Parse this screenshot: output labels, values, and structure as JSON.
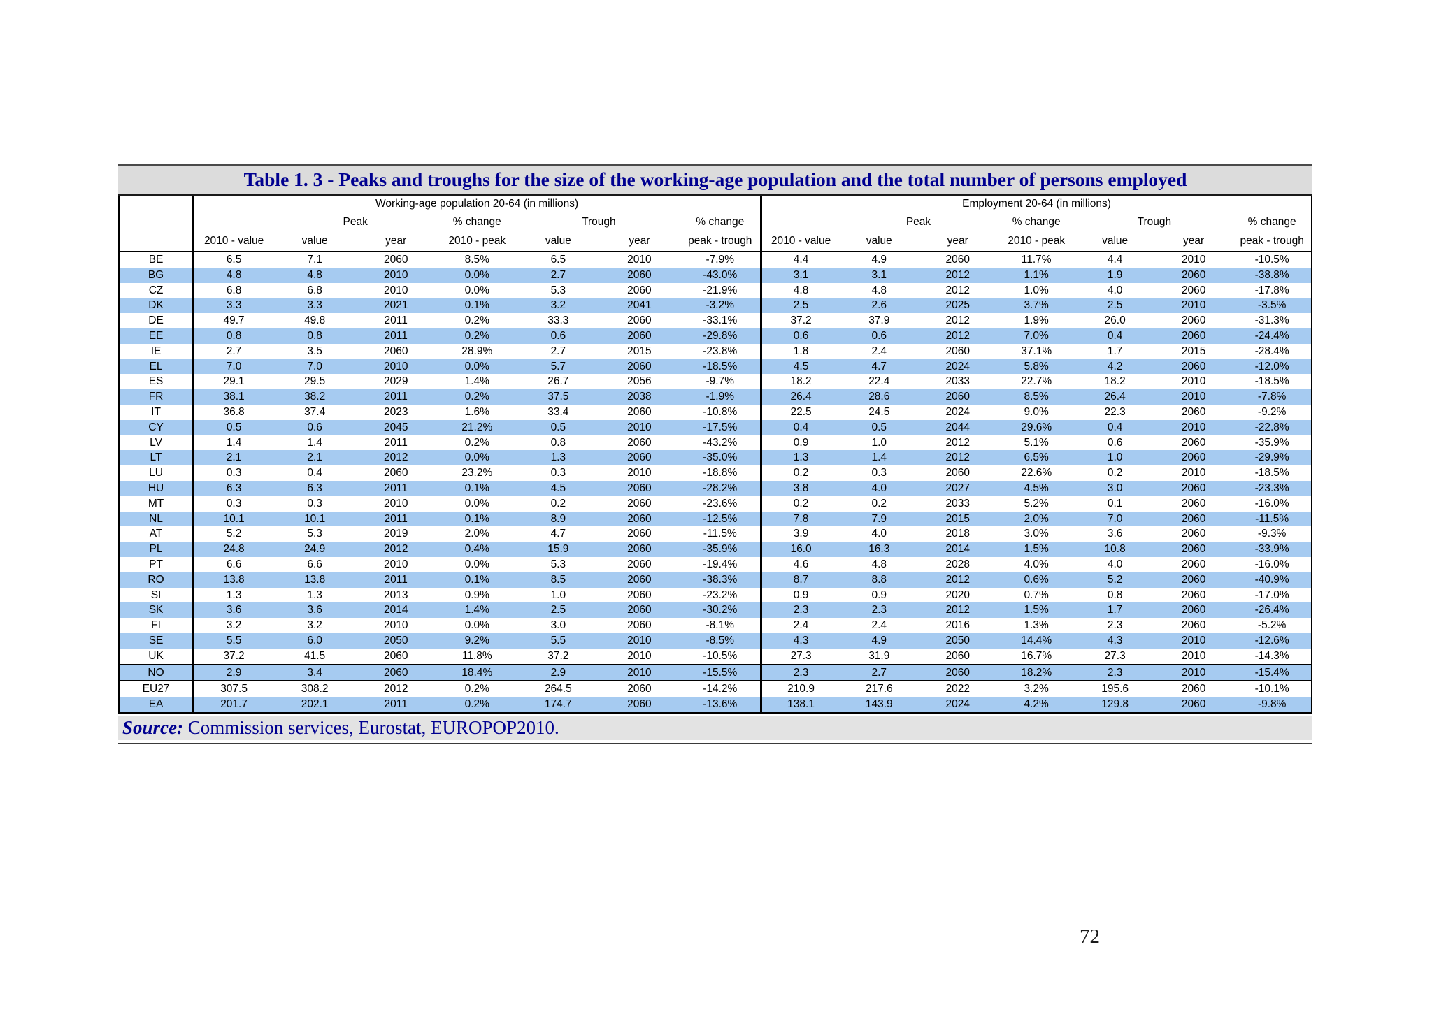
{
  "page": {
    "number": "72"
  },
  "table": {
    "title": "Table 1. 3 - Peaks and troughs for the size of the working-age population and the total number of persons employed",
    "sections": [
      "Working-age population 20-64 (in millions)",
      "Employment 20-64 (in millions)"
    ],
    "group_labels": [
      "Peak",
      "% change",
      "Trough",
      "% change"
    ],
    "sub_headers": [
      "2010 - value",
      "value",
      "year",
      "2010 - peak",
      "value",
      "year",
      "peak - trough"
    ],
    "rows": [
      {
        "code": "BE",
        "wap": [
          "6.5",
          "7.1",
          "2060",
          "8.5%",
          "6.5",
          "2010",
          "-7.9%"
        ],
        "emp": [
          "4.4",
          "4.9",
          "2060",
          "11.7%",
          "4.4",
          "2010",
          "-10.5%"
        ]
      },
      {
        "code": "BG",
        "wap": [
          "4.8",
          "4.8",
          "2010",
          "0.0%",
          "2.7",
          "2060",
          "-43.0%"
        ],
        "emp": [
          "3.1",
          "3.1",
          "2012",
          "1.1%",
          "1.9",
          "2060",
          "-38.8%"
        ]
      },
      {
        "code": "CZ",
        "wap": [
          "6.8",
          "6.8",
          "2010",
          "0.0%",
          "5.3",
          "2060",
          "-21.9%"
        ],
        "emp": [
          "4.8",
          "4.8",
          "2012",
          "1.0%",
          "4.0",
          "2060",
          "-17.8%"
        ]
      },
      {
        "code": "DK",
        "wap": [
          "3.3",
          "3.3",
          "2021",
          "0.1%",
          "3.2",
          "2041",
          "-3.2%"
        ],
        "emp": [
          "2.5",
          "2.6",
          "2025",
          "3.7%",
          "2.5",
          "2010",
          "-3.5%"
        ]
      },
      {
        "code": "DE",
        "wap": [
          "49.7",
          "49.8",
          "2011",
          "0.2%",
          "33.3",
          "2060",
          "-33.1%"
        ],
        "emp": [
          "37.2",
          "37.9",
          "2012",
          "1.9%",
          "26.0",
          "2060",
          "-31.3%"
        ]
      },
      {
        "code": "EE",
        "wap": [
          "0.8",
          "0.8",
          "2011",
          "0.2%",
          "0.6",
          "2060",
          "-29.8%"
        ],
        "emp": [
          "0.6",
          "0.6",
          "2012",
          "7.0%",
          "0.4",
          "2060",
          "-24.4%"
        ]
      },
      {
        "code": "IE",
        "wap": [
          "2.7",
          "3.5",
          "2060",
          "28.9%",
          "2.7",
          "2015",
          "-23.8%"
        ],
        "emp": [
          "1.8",
          "2.4",
          "2060",
          "37.1%",
          "1.7",
          "2015",
          "-28.4%"
        ]
      },
      {
        "code": "EL",
        "wap": [
          "7.0",
          "7.0",
          "2010",
          "0.0%",
          "5.7",
          "2060",
          "-18.5%"
        ],
        "emp": [
          "4.5",
          "4.7",
          "2024",
          "5.8%",
          "4.2",
          "2060",
          "-12.0%"
        ]
      },
      {
        "code": "ES",
        "wap": [
          "29.1",
          "29.5",
          "2029",
          "1.4%",
          "26.7",
          "2056",
          "-9.7%"
        ],
        "emp": [
          "18.2",
          "22.4",
          "2033",
          "22.7%",
          "18.2",
          "2010",
          "-18.5%"
        ]
      },
      {
        "code": "FR",
        "wap": [
          "38.1",
          "38.2",
          "2011",
          "0.2%",
          "37.5",
          "2038",
          "-1.9%"
        ],
        "emp": [
          "26.4",
          "28.6",
          "2060",
          "8.5%",
          "26.4",
          "2010",
          "-7.8%"
        ]
      },
      {
        "code": "IT",
        "wap": [
          "36.8",
          "37.4",
          "2023",
          "1.6%",
          "33.4",
          "2060",
          "-10.8%"
        ],
        "emp": [
          "22.5",
          "24.5",
          "2024",
          "9.0%",
          "22.3",
          "2060",
          "-9.2%"
        ]
      },
      {
        "code": "CY",
        "wap": [
          "0.5",
          "0.6",
          "2045",
          "21.2%",
          "0.5",
          "2010",
          "-17.5%"
        ],
        "emp": [
          "0.4",
          "0.5",
          "2044",
          "29.6%",
          "0.4",
          "2010",
          "-22.8%"
        ]
      },
      {
        "code": "LV",
        "wap": [
          "1.4",
          "1.4",
          "2011",
          "0.2%",
          "0.8",
          "2060",
          "-43.2%"
        ],
        "emp": [
          "0.9",
          "1.0",
          "2012",
          "5.1%",
          "0.6",
          "2060",
          "-35.9%"
        ]
      },
      {
        "code": "LT",
        "wap": [
          "2.1",
          "2.1",
          "2012",
          "0.0%",
          "1.3",
          "2060",
          "-35.0%"
        ],
        "emp": [
          "1.3",
          "1.4",
          "2012",
          "6.5%",
          "1.0",
          "2060",
          "-29.9%"
        ]
      },
      {
        "code": "LU",
        "wap": [
          "0.3",
          "0.4",
          "2060",
          "23.2%",
          "0.3",
          "2010",
          "-18.8%"
        ],
        "emp": [
          "0.2",
          "0.3",
          "2060",
          "22.6%",
          "0.2",
          "2010",
          "-18.5%"
        ]
      },
      {
        "code": "HU",
        "wap": [
          "6.3",
          "6.3",
          "2011",
          "0.1%",
          "4.5",
          "2060",
          "-28.2%"
        ],
        "emp": [
          "3.8",
          "4.0",
          "2027",
          "4.5%",
          "3.0",
          "2060",
          "-23.3%"
        ]
      },
      {
        "code": "MT",
        "wap": [
          "0.3",
          "0.3",
          "2010",
          "0.0%",
          "0.2",
          "2060",
          "-23.6%"
        ],
        "emp": [
          "0.2",
          "0.2",
          "2033",
          "5.2%",
          "0.1",
          "2060",
          "-16.0%"
        ]
      },
      {
        "code": "NL",
        "wap": [
          "10.1",
          "10.1",
          "2011",
          "0.1%",
          "8.9",
          "2060",
          "-12.5%"
        ],
        "emp": [
          "7.8",
          "7.9",
          "2015",
          "2.0%",
          "7.0",
          "2060",
          "-11.5%"
        ]
      },
      {
        "code": "AT",
        "wap": [
          "5.2",
          "5.3",
          "2019",
          "2.0%",
          "4.7",
          "2060",
          "-11.5%"
        ],
        "emp": [
          "3.9",
          "4.0",
          "2018",
          "3.0%",
          "3.6",
          "2060",
          "-9.3%"
        ]
      },
      {
        "code": "PL",
        "wap": [
          "24.8",
          "24.9",
          "2012",
          "0.4%",
          "15.9",
          "2060",
          "-35.9%"
        ],
        "emp": [
          "16.0",
          "16.3",
          "2014",
          "1.5%",
          "10.8",
          "2060",
          "-33.9%"
        ]
      },
      {
        "code": "PT",
        "wap": [
          "6.6",
          "6.6",
          "2010",
          "0.0%",
          "5.3",
          "2060",
          "-19.4%"
        ],
        "emp": [
          "4.6",
          "4.8",
          "2028",
          "4.0%",
          "4.0",
          "2060",
          "-16.0%"
        ]
      },
      {
        "code": "RO",
        "wap": [
          "13.8",
          "13.8",
          "2011",
          "0.1%",
          "8.5",
          "2060",
          "-38.3%"
        ],
        "emp": [
          "8.7",
          "8.8",
          "2012",
          "0.6%",
          "5.2",
          "2060",
          "-40.9%"
        ]
      },
      {
        "code": "SI",
        "wap": [
          "1.3",
          "1.3",
          "2013",
          "0.9%",
          "1.0",
          "2060",
          "-23.2%"
        ],
        "emp": [
          "0.9",
          "0.9",
          "2020",
          "0.7%",
          "0.8",
          "2060",
          "-17.0%"
        ]
      },
      {
        "code": "SK",
        "wap": [
          "3.6",
          "3.6",
          "2014",
          "1.4%",
          "2.5",
          "2060",
          "-30.2%"
        ],
        "emp": [
          "2.3",
          "2.3",
          "2012",
          "1.5%",
          "1.7",
          "2060",
          "-26.4%"
        ]
      },
      {
        "code": "FI",
        "wap": [
          "3.2",
          "3.2",
          "2010",
          "0.0%",
          "3.0",
          "2060",
          "-8.1%"
        ],
        "emp": [
          "2.4",
          "2.4",
          "2016",
          "1.3%",
          "2.3",
          "2060",
          "-5.2%"
        ]
      },
      {
        "code": "SE",
        "wap": [
          "5.5",
          "6.0",
          "2050",
          "9.2%",
          "5.5",
          "2010",
          "-8.5%"
        ],
        "emp": [
          "4.3",
          "4.9",
          "2050",
          "14.4%",
          "4.3",
          "2010",
          "-12.6%"
        ]
      },
      {
        "code": "UK",
        "wap": [
          "37.2",
          "41.5",
          "2060",
          "11.8%",
          "37.2",
          "2010",
          "-10.5%"
        ],
        "emp": [
          "27.3",
          "31.9",
          "2060",
          "16.7%",
          "27.3",
          "2010",
          "-14.3%"
        ]
      },
      {
        "code": "NO",
        "wap": [
          "2.9",
          "3.4",
          "2060",
          "18.4%",
          "2.9",
          "2010",
          "-15.5%"
        ],
        "emp": [
          "2.3",
          "2.7",
          "2060",
          "18.2%",
          "2.3",
          "2010",
          "-15.4%"
        ]
      },
      {
        "code": "EU27",
        "wap": [
          "307.5",
          "308.2",
          "2012",
          "0.2%",
          "264.5",
          "2060",
          "-14.2%"
        ],
        "emp": [
          "210.9",
          "217.6",
          "2022",
          "3.2%",
          "195.6",
          "2060",
          "-10.1%"
        ]
      },
      {
        "code": "EA",
        "wap": [
          "201.7",
          "202.1",
          "2011",
          "0.2%",
          "174.7",
          "2060",
          "-13.6%"
        ],
        "emp": [
          "138.1",
          "143.9",
          "2024",
          "4.2%",
          "129.8",
          "2060",
          "-9.8%"
        ]
      }
    ]
  },
  "source": {
    "label": "Source:",
    "text": " Commission services, Eurostat, EUROPOP2010."
  },
  "colors": {
    "zebra_blue": "#a6cbf1",
    "title_navy": "#000090",
    "band_gray": "#dcdcdc",
    "source_band_gray": "#e3e3e3"
  }
}
